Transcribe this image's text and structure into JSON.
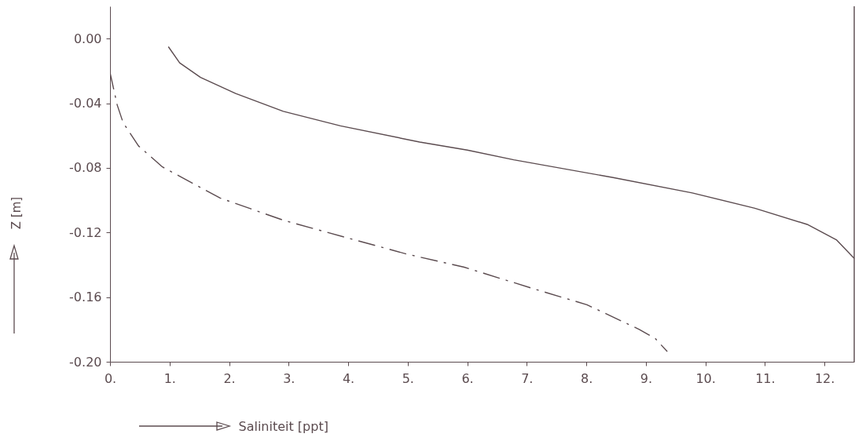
{
  "chart_data": {
    "type": "line",
    "xlabel": "Saliniteit [ppt]",
    "ylabel": "Z [m]",
    "xlim": [
      0,
      12.5
    ],
    "ylim": [
      -0.2,
      0.02
    ],
    "xticks": [
      {
        "value": 0,
        "label": "0."
      },
      {
        "value": 1,
        "label": "1."
      },
      {
        "value": 2,
        "label": "2."
      },
      {
        "value": 3,
        "label": "3."
      },
      {
        "value": 4,
        "label": "4."
      },
      {
        "value": 5,
        "label": "5."
      },
      {
        "value": 6,
        "label": "6."
      },
      {
        "value": 7,
        "label": "7."
      },
      {
        "value": 8,
        "label": "8."
      },
      {
        "value": 9,
        "label": "9."
      },
      {
        "value": 10,
        "label": "10."
      },
      {
        "value": 11,
        "label": "11."
      },
      {
        "value": 12,
        "label": "12."
      }
    ],
    "yticks": [
      {
        "value": 0,
        "label": "0.00"
      },
      -0.04,
      -0.08,
      -0.12,
      -0.16,
      {
        "value": -0.2,
        "label": "-0.20"
      }
    ],
    "series": [
      {
        "color": "#5b4b4f",
        "line_style": "solid",
        "x": [
          0.98,
          1.17,
          1.52,
          2.11,
          2.91,
          3.87,
          5.2,
          6.0,
          6.78,
          8.45,
          9.78,
          10.83,
          11.71,
          12.2,
          12.5
        ],
        "values": [
          -0.005,
          -0.015,
          -0.024,
          -0.034,
          -0.045,
          -0.054,
          -0.064,
          -0.069,
          -0.075,
          -0.086,
          -0.0955,
          -0.105,
          -0.115,
          -0.1245,
          -0.136
        ]
      },
      {
        "color": "#5b4b4f",
        "line_style": "dashed",
        "x": [
          0,
          0.12,
          0.22,
          0.48,
          0.88,
          1.85,
          2.91,
          4.1,
          4.98,
          5.95,
          7.13,
          8.01,
          8.89,
          9.16,
          9.36
        ],
        "values": [
          -0.021,
          -0.041,
          -0.052,
          -0.0665,
          -0.0794,
          -0.0987,
          -0.1124,
          -0.1245,
          -0.1333,
          -0.1415,
          -0.155,
          -0.1647,
          -0.18,
          -0.1857,
          -0.1937
        ]
      }
    ],
    "ref_lines": [
      {
        "axis": "x",
        "value": 12.5,
        "color": "#5b4b4f"
      }
    ]
  }
}
